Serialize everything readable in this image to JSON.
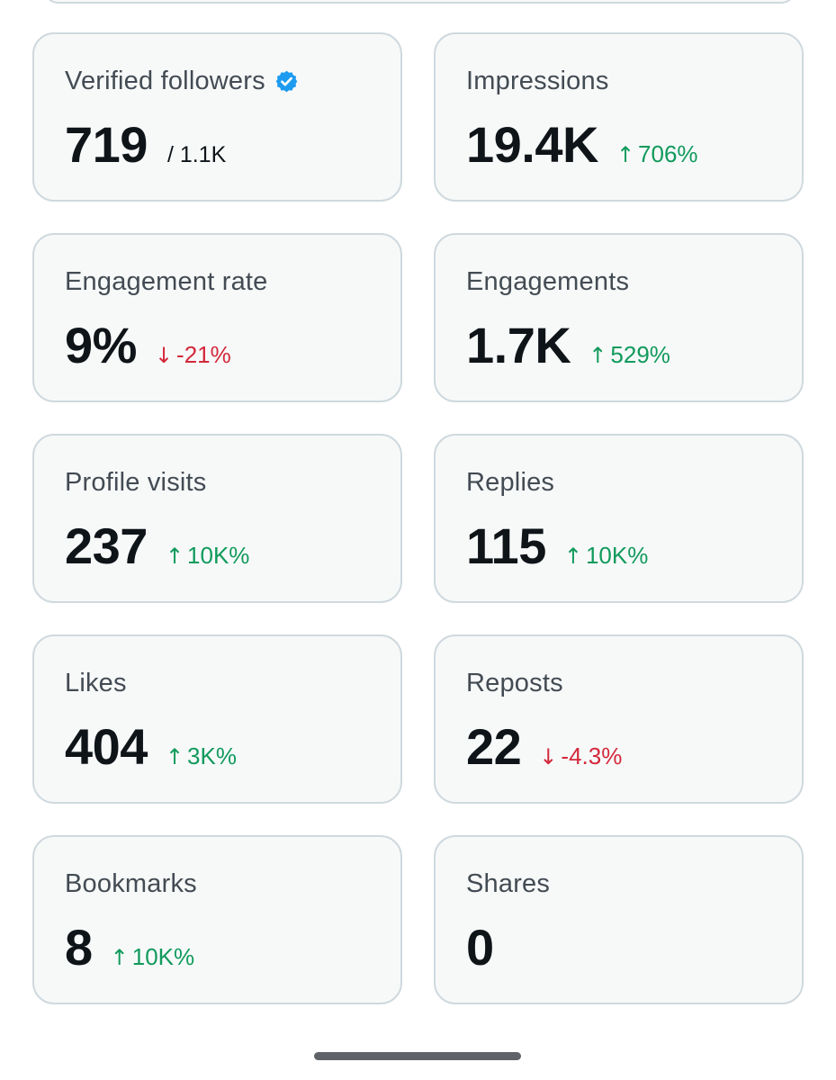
{
  "colors": {
    "card_bg": "#f7f9f9",
    "card_border": "#cfd9de",
    "positive": "#119a5c",
    "negative": "#d3283a",
    "verified_badge": "#1d9bf0"
  },
  "metrics": [
    {
      "label": "Verified followers",
      "value": "719",
      "sub": "/ 1.1K",
      "verified": true
    },
    {
      "label": "Impressions",
      "value": "19.4K",
      "direction": "up",
      "arrow": "↑",
      "delta": "706%"
    },
    {
      "label": "Engagement rate",
      "value": "9%",
      "direction": "down",
      "arrow": "↓",
      "delta": "-21%"
    },
    {
      "label": "Engagements",
      "value": "1.7K",
      "direction": "up",
      "arrow": "↑",
      "delta": "529%"
    },
    {
      "label": "Profile visits",
      "value": "237",
      "direction": "up",
      "arrow": "↑",
      "delta": "10K%"
    },
    {
      "label": "Replies",
      "value": "115",
      "direction": "up",
      "arrow": "↑",
      "delta": "10K%"
    },
    {
      "label": "Likes",
      "value": "404",
      "direction": "up",
      "arrow": "↑",
      "delta": "3K%"
    },
    {
      "label": "Reposts",
      "value": "22",
      "direction": "down",
      "arrow": "↓",
      "delta": "-4.3%"
    },
    {
      "label": "Bookmarks",
      "value": "8",
      "direction": "up",
      "arrow": "↑",
      "delta": "10K%"
    },
    {
      "label": "Shares",
      "value": "0"
    }
  ]
}
